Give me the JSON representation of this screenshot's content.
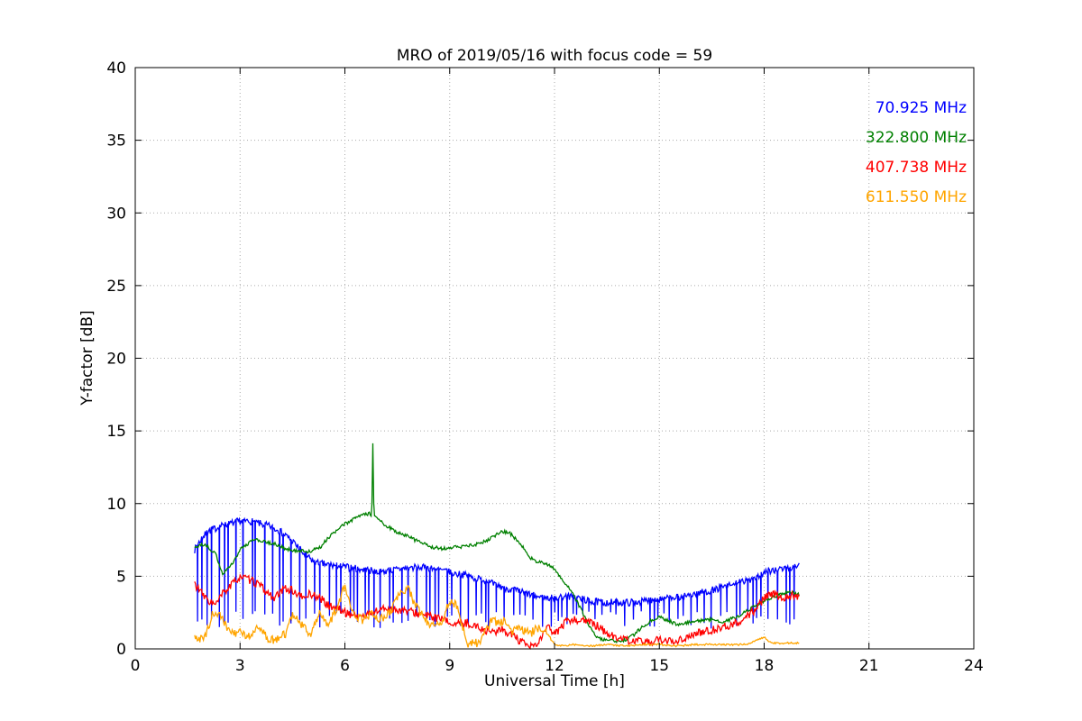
{
  "chart_data": {
    "type": "line",
    "title": "MRO of 2019/05/16 with focus code = 59",
    "xlabel": "Universal Time [h]",
    "ylabel": "Y-factor [dB]",
    "xlim": [
      0,
      24
    ],
    "ylim": [
      0,
      40
    ],
    "xticks": [
      0,
      3,
      6,
      9,
      12,
      15,
      18,
      21,
      24
    ],
    "yticks": [
      0,
      5,
      10,
      15,
      20,
      25,
      30,
      35,
      40
    ],
    "grid": true,
    "legend_position": "upper right",
    "series": [
      {
        "name": "70.925 MHz",
        "color": "#0000ff",
        "amp": 0.25,
        "spikes": true,
        "pts": [
          [
            1.7,
            6.8
          ],
          [
            1.9,
            7.6
          ],
          [
            2.1,
            8.1
          ],
          [
            2.4,
            8.4
          ],
          [
            2.7,
            8.6
          ],
          [
            3.0,
            8.8
          ],
          [
            3.3,
            8.8
          ],
          [
            3.6,
            8.6
          ],
          [
            3.9,
            8.4
          ],
          [
            4.2,
            8.0
          ],
          [
            4.5,
            7.4
          ],
          [
            4.8,
            6.6
          ],
          [
            5.0,
            6.2
          ],
          [
            5.2,
            5.9
          ],
          [
            5.5,
            5.8
          ],
          [
            5.8,
            5.7
          ],
          [
            6.1,
            5.6
          ],
          [
            6.4,
            5.5
          ],
          [
            6.7,
            5.4
          ],
          [
            7.0,
            5.3
          ],
          [
            7.3,
            5.4
          ],
          [
            7.6,
            5.5
          ],
          [
            7.9,
            5.6
          ],
          [
            8.2,
            5.6
          ],
          [
            8.5,
            5.5
          ],
          [
            8.8,
            5.4
          ],
          [
            9.1,
            5.2
          ],
          [
            9.4,
            5.1
          ],
          [
            9.7,
            4.9
          ],
          [
            10.0,
            4.7
          ],
          [
            10.3,
            4.4
          ],
          [
            10.6,
            4.2
          ],
          [
            10.9,
            4.0
          ],
          [
            11.2,
            3.8
          ],
          [
            11.5,
            3.6
          ],
          [
            11.8,
            3.5
          ],
          [
            12.1,
            3.5
          ],
          [
            12.4,
            3.6
          ],
          [
            12.7,
            3.5
          ],
          [
            13.0,
            3.3
          ],
          [
            13.3,
            3.2
          ],
          [
            13.6,
            3.2
          ],
          [
            13.9,
            3.2
          ],
          [
            14.2,
            3.2
          ],
          [
            14.5,
            3.3
          ],
          [
            14.8,
            3.4
          ],
          [
            15.1,
            3.4
          ],
          [
            15.4,
            3.5
          ],
          [
            15.7,
            3.6
          ],
          [
            16.0,
            3.8
          ],
          [
            16.3,
            3.9
          ],
          [
            16.6,
            4.1
          ],
          [
            16.9,
            4.3
          ],
          [
            17.2,
            4.5
          ],
          [
            17.5,
            4.7
          ],
          [
            17.8,
            5.0
          ],
          [
            18.1,
            5.3
          ],
          [
            18.4,
            5.5
          ],
          [
            18.7,
            5.5
          ],
          [
            19.0,
            5.8
          ]
        ]
      },
      {
        "name": "322.800 MHz",
        "color": "#008000",
        "amp": 0.12,
        "spikes": false,
        "pts": [
          [
            1.7,
            7.0
          ],
          [
            2.0,
            7.2
          ],
          [
            2.3,
            6.5
          ],
          [
            2.5,
            5.2
          ],
          [
            2.7,
            5.6
          ],
          [
            3.0,
            6.8
          ],
          [
            3.3,
            7.4
          ],
          [
            3.5,
            7.5
          ],
          [
            3.8,
            7.3
          ],
          [
            4.0,
            7.2
          ],
          [
            4.3,
            6.9
          ],
          [
            4.5,
            6.8
          ],
          [
            5.0,
            6.7
          ],
          [
            5.3,
            7.0
          ],
          [
            5.5,
            7.6
          ],
          [
            5.8,
            8.2
          ],
          [
            6.0,
            8.6
          ],
          [
            6.3,
            9.0
          ],
          [
            6.5,
            9.2
          ],
          [
            6.7,
            9.3
          ],
          [
            6.77,
            9.2
          ],
          [
            6.8,
            14.2
          ],
          [
            6.83,
            9.1
          ],
          [
            6.9,
            9.0
          ],
          [
            7.0,
            8.8
          ],
          [
            7.3,
            8.3
          ],
          [
            7.5,
            8.0
          ],
          [
            7.8,
            7.8
          ],
          [
            8.0,
            7.5
          ],
          [
            8.3,
            7.2
          ],
          [
            8.5,
            7.0
          ],
          [
            8.8,
            6.9
          ],
          [
            9.0,
            7.0
          ],
          [
            9.3,
            7.0
          ],
          [
            9.5,
            7.1
          ],
          [
            9.8,
            7.2
          ],
          [
            10.0,
            7.4
          ],
          [
            10.3,
            7.8
          ],
          [
            10.5,
            8.1
          ],
          [
            10.7,
            8.0
          ],
          [
            11.0,
            7.3
          ],
          [
            11.3,
            6.3
          ],
          [
            11.5,
            6.0
          ],
          [
            11.8,
            5.8
          ],
          [
            12.0,
            5.5
          ],
          [
            12.3,
            4.5
          ],
          [
            12.5,
            4.0
          ],
          [
            12.7,
            3.0
          ],
          [
            13.0,
            1.5
          ],
          [
            13.2,
            0.8
          ],
          [
            13.5,
            0.6
          ],
          [
            13.8,
            0.5
          ],
          [
            14.0,
            0.6
          ],
          [
            14.3,
            1.0
          ],
          [
            14.5,
            1.5
          ],
          [
            14.8,
            2.0
          ],
          [
            15.0,
            2.2
          ],
          [
            15.3,
            1.9
          ],
          [
            15.5,
            1.7
          ],
          [
            15.8,
            1.8
          ],
          [
            16.0,
            1.9
          ],
          [
            16.3,
            2.0
          ],
          [
            16.5,
            2.0
          ],
          [
            16.8,
            1.9
          ],
          [
            17.0,
            2.0
          ],
          [
            17.3,
            2.3
          ],
          [
            17.5,
            2.6
          ],
          [
            17.8,
            3.0
          ],
          [
            18.0,
            3.3
          ],
          [
            18.3,
            3.6
          ],
          [
            18.5,
            3.8
          ],
          [
            18.8,
            3.9
          ],
          [
            19.0,
            3.7
          ]
        ]
      },
      {
        "name": "407.738 MHz",
        "color": "#ff0000",
        "amp": 0.28,
        "spikes": false,
        "pts": [
          [
            1.7,
            4.5
          ],
          [
            2.0,
            3.5
          ],
          [
            2.3,
            3.0
          ],
          [
            2.5,
            3.8
          ],
          [
            2.8,
            4.5
          ],
          [
            3.0,
            5.0
          ],
          [
            3.2,
            4.8
          ],
          [
            3.5,
            4.5
          ],
          [
            3.8,
            3.8
          ],
          [
            4.0,
            3.5
          ],
          [
            4.3,
            4.2
          ],
          [
            4.5,
            4.0
          ],
          [
            4.8,
            3.5
          ],
          [
            5.0,
            3.8
          ],
          [
            5.3,
            3.5
          ],
          [
            5.5,
            3.0
          ],
          [
            5.8,
            2.8
          ],
          [
            6.0,
            2.5
          ],
          [
            6.3,
            2.3
          ],
          [
            6.5,
            2.2
          ],
          [
            6.8,
            2.5
          ],
          [
            7.0,
            2.7
          ],
          [
            7.3,
            2.8
          ],
          [
            7.5,
            2.7
          ],
          [
            7.8,
            2.6
          ],
          [
            8.0,
            2.5
          ],
          [
            8.3,
            2.3
          ],
          [
            8.5,
            2.2
          ],
          [
            8.8,
            2.0
          ],
          [
            9.0,
            1.8
          ],
          [
            9.3,
            1.7
          ],
          [
            9.5,
            1.8
          ],
          [
            9.8,
            1.5
          ],
          [
            10.0,
            1.3
          ],
          [
            10.3,
            1.2
          ],
          [
            10.5,
            1.3
          ],
          [
            10.8,
            1.0
          ],
          [
            11.0,
            0.5
          ],
          [
            11.3,
            0.1
          ],
          [
            11.5,
            0.3
          ],
          [
            11.8,
            1.5
          ],
          [
            12.0,
            1.0
          ],
          [
            12.3,
            1.8
          ],
          [
            12.5,
            2.0
          ],
          [
            12.8,
            2.0
          ],
          [
            13.0,
            1.8
          ],
          [
            13.3,
            1.5
          ],
          [
            13.5,
            1.0
          ],
          [
            13.8,
            0.8
          ],
          [
            14.0,
            0.6
          ],
          [
            14.3,
            0.5
          ],
          [
            14.5,
            0.5
          ],
          [
            14.8,
            0.5
          ],
          [
            15.0,
            0.6
          ],
          [
            15.3,
            0.5
          ],
          [
            15.5,
            0.6
          ],
          [
            15.8,
            0.8
          ],
          [
            16.0,
            1.0
          ],
          [
            16.3,
            1.2
          ],
          [
            16.5,
            1.3
          ],
          [
            16.8,
            1.5
          ],
          [
            17.0,
            1.6
          ],
          [
            17.3,
            1.9
          ],
          [
            17.5,
            2.2
          ],
          [
            17.8,
            2.8
          ],
          [
            18.0,
            3.5
          ],
          [
            18.3,
            3.8
          ],
          [
            18.5,
            3.5
          ],
          [
            18.8,
            3.7
          ],
          [
            19.0,
            3.5
          ]
        ]
      },
      {
        "name": "611.550 MHz",
        "color": "#ffa500",
        "amp": 0.3,
        "spikes": false,
        "amp_after": {
          "x": 11.9,
          "amp": 0.06
        },
        "pts": [
          [
            1.7,
            0.7
          ],
          [
            2.0,
            0.8
          ],
          [
            2.2,
            2.3
          ],
          [
            2.4,
            2.5
          ],
          [
            2.6,
            1.5
          ],
          [
            2.8,
            1.0
          ],
          [
            3.0,
            1.2
          ],
          [
            3.3,
            0.8
          ],
          [
            3.5,
            1.5
          ],
          [
            3.8,
            0.7
          ],
          [
            4.0,
            0.6
          ],
          [
            4.3,
            1.0
          ],
          [
            4.5,
            2.5
          ],
          [
            4.8,
            1.5
          ],
          [
            5.0,
            1.0
          ],
          [
            5.3,
            2.5
          ],
          [
            5.5,
            1.5
          ],
          [
            5.8,
            3.0
          ],
          [
            6.0,
            4.4
          ],
          [
            6.2,
            2.5
          ],
          [
            6.5,
            2.0
          ],
          [
            6.8,
            2.5
          ],
          [
            7.0,
            2.0
          ],
          [
            7.3,
            2.5
          ],
          [
            7.5,
            3.5
          ],
          [
            7.8,
            4.3
          ],
          [
            8.0,
            3.0
          ],
          [
            8.3,
            2.0
          ],
          [
            8.5,
            1.5
          ],
          [
            8.8,
            2.0
          ],
          [
            9.0,
            3.3
          ],
          [
            9.2,
            3.0
          ],
          [
            9.5,
            0.4
          ],
          [
            9.8,
            0.4
          ],
          [
            10.0,
            1.0
          ],
          [
            10.2,
            2.0
          ],
          [
            10.4,
            1.8
          ],
          [
            10.6,
            2.0
          ],
          [
            10.8,
            1.2
          ],
          [
            11.0,
            1.5
          ],
          [
            11.3,
            1.0
          ],
          [
            11.5,
            1.5
          ],
          [
            11.8,
            1.0
          ],
          [
            12.0,
            0.3
          ],
          [
            12.3,
            0.2
          ],
          [
            12.5,
            0.3
          ],
          [
            13.0,
            0.2
          ],
          [
            13.5,
            0.3
          ],
          [
            14.0,
            0.2
          ],
          [
            14.5,
            0.3
          ],
          [
            15.0,
            0.3
          ],
          [
            15.5,
            0.2
          ],
          [
            16.0,
            0.3
          ],
          [
            16.5,
            0.3
          ],
          [
            17.0,
            0.3
          ],
          [
            17.5,
            0.3
          ],
          [
            18.0,
            0.8
          ],
          [
            18.2,
            0.4
          ],
          [
            18.5,
            0.4
          ],
          [
            19.0,
            0.4
          ]
        ]
      }
    ]
  }
}
